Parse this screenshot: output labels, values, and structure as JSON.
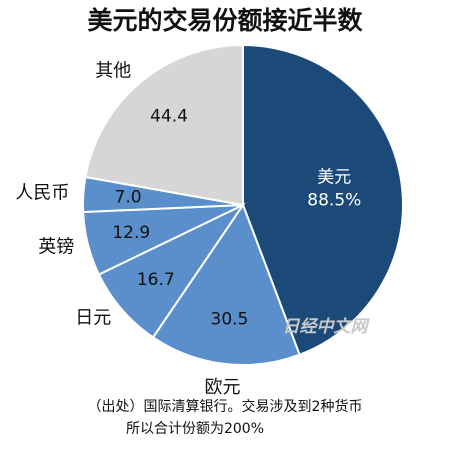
{
  "chart_data": {
    "type": "pie",
    "title": "美元的交易份额接近半数",
    "categories": [
      "美元",
      "欧元",
      "日元",
      "英镑",
      "人民币",
      "其他"
    ],
    "values": [
      88.5,
      30.5,
      16.7,
      12.9,
      7.0,
      44.4
    ],
    "value_labels": [
      "88.5%",
      "30.5",
      "16.7",
      "12.9",
      "7.0",
      "44.4"
    ],
    "colors": [
      "#1c4a78",
      "#5b8fcc",
      "#5b8fcc",
      "#5b8fcc",
      "#5b8fcc",
      "#d6d6d6"
    ],
    "watermark": "日经中文网",
    "notes": [
      "（出处）国际清算银行。交易涉及到2种货币",
      "所以合计份额为200%"
    ]
  }
}
